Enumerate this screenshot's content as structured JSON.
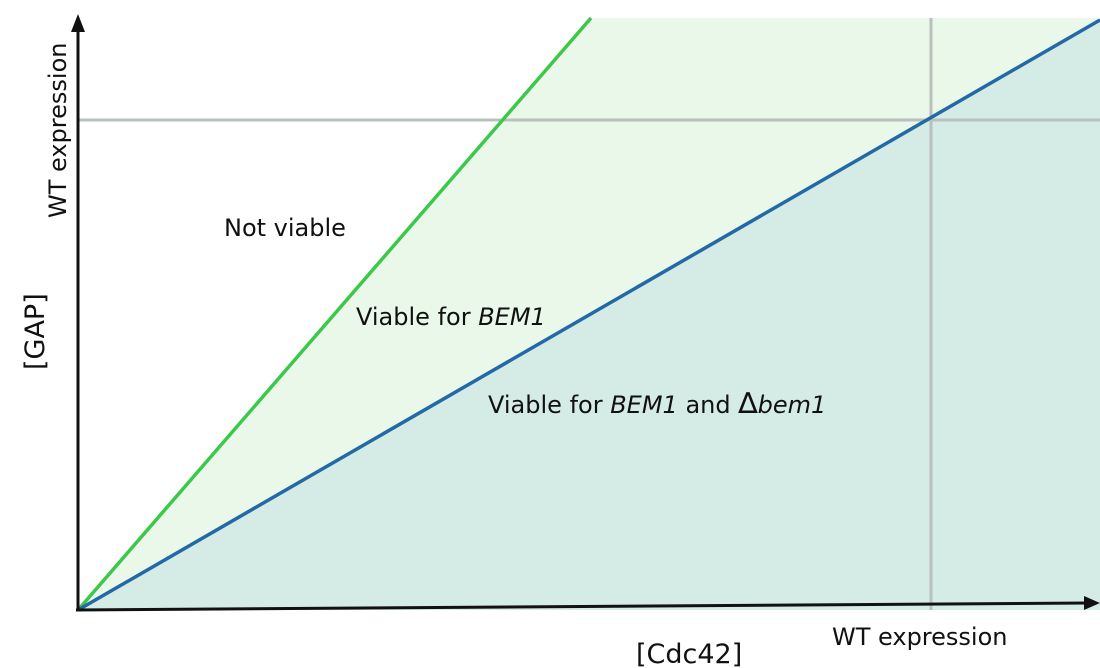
{
  "axes": {
    "x_label": "[Cdc42]",
    "y_label": "[GAP]"
  },
  "reference_lines": {
    "x_ref_label": "WT expression",
    "y_ref_label": "WT expression"
  },
  "regions": {
    "not_viable": {
      "label": "Not viable"
    },
    "viable_bem1": {
      "prefix": "Viable for ",
      "gene": "BEM1"
    },
    "viable_both": {
      "prefix": "Viable for ",
      "gene": "BEM1",
      "mid": " and ",
      "delta": "∆",
      "mutant": "bem1"
    }
  },
  "colors": {
    "green_boundary": "#3cc84a",
    "blue_boundary": "#2369a5",
    "green_region_fill": "#eaf8ea",
    "blue_region_fill": "#d5ebe6",
    "reference_line": "#b9c1bd",
    "axis": "#111111"
  }
}
